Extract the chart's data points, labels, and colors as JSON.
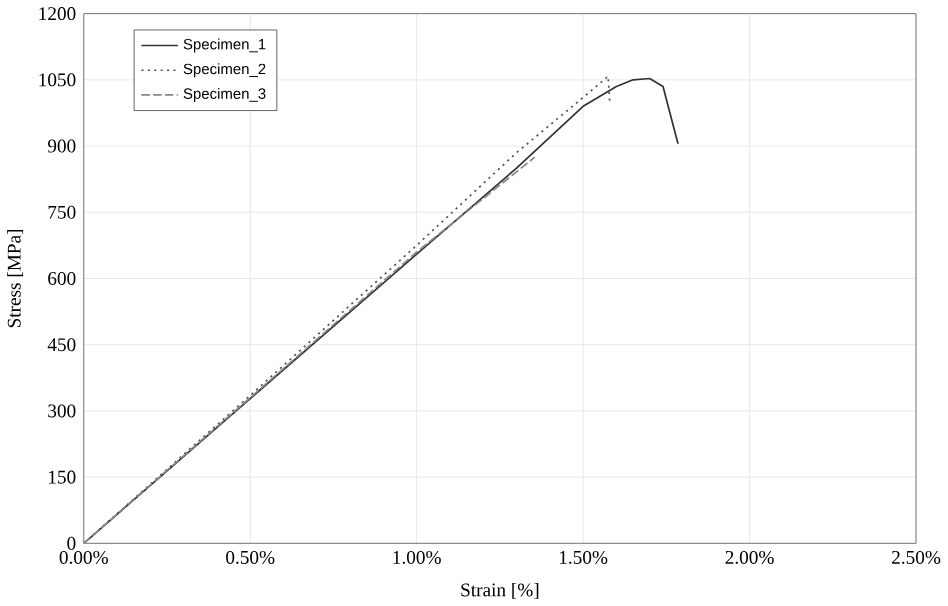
{
  "chart_data": {
    "type": "line",
    "xlabel": "Strain [%]",
    "ylabel": "Stress [MPa]",
    "xlim": [
      0,
      2.5
    ],
    "ylim": [
      0,
      1200
    ],
    "xticks": [
      {
        "value": 0,
        "label": "0.00%"
      },
      {
        "value": 0.5,
        "label": "0.50%"
      },
      {
        "value": 1.0,
        "label": "1.00%"
      },
      {
        "value": 1.5,
        "label": "1.50%"
      },
      {
        "value": 2.0,
        "label": "2.00%"
      },
      {
        "value": 2.5,
        "label": "2.50%"
      }
    ],
    "yticks": [
      0,
      150,
      300,
      450,
      600,
      750,
      900,
      1050,
      1200
    ],
    "grid": true,
    "legend": "top left",
    "marker": "none",
    "series": [
      {
        "name": "Specimen_1",
        "color": "#333333",
        "line_style": "solid",
        "x": [
          0,
          0.5,
          1.0,
          1.3,
          1.5,
          1.6,
          1.65,
          1.7,
          1.74,
          1.785
        ],
        "values": [
          0,
          328,
          655,
          850,
          990,
          1035,
          1050,
          1053,
          1035,
          905
        ]
      },
      {
        "name": "Specimen_2",
        "color": "#555555",
        "line_style": "dotted",
        "x": [
          0,
          0.5,
          1.0,
          1.3,
          1.5,
          1.575,
          1.58
        ],
        "values": [
          0,
          335,
          675,
          885,
          1010,
          1058,
          1000
        ]
      },
      {
        "name": "Specimen_3",
        "color": "#888888",
        "line_style": "dashed",
        "x": [
          0,
          0.5,
          1.0,
          1.355
        ],
        "values": [
          0,
          330,
          660,
          875
        ]
      }
    ]
  }
}
